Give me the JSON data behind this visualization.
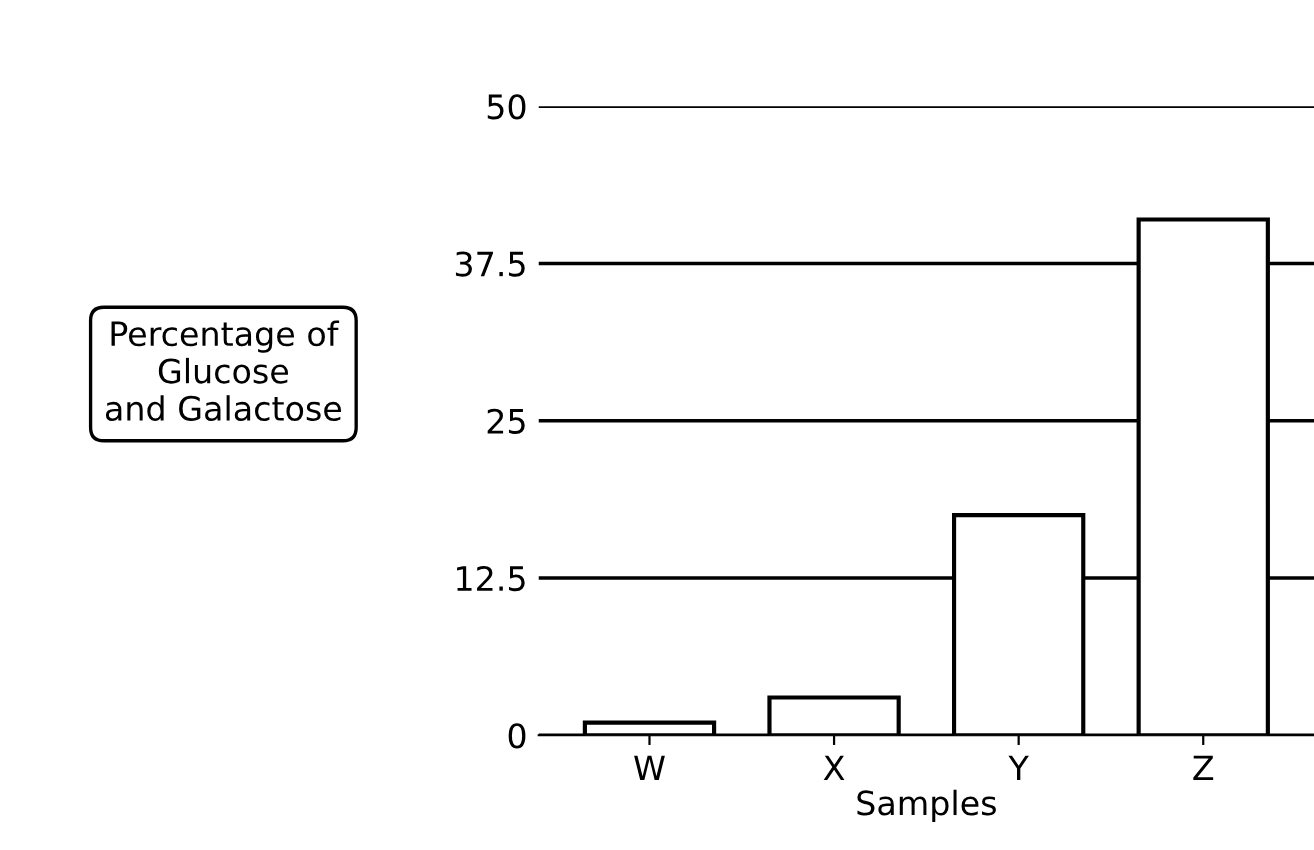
{
  "chart_data": {
    "type": "bar",
    "xlabel": "Samples",
    "ylabel": "Percentage of\nGlucose\nand Galactose",
    "categories": [
      "W",
      "X",
      "Y",
      "Z"
    ],
    "values": [
      1,
      3,
      17.5,
      41
    ],
    "color": "#ffffff",
    "ylim": [
      0,
      50
    ],
    "yticks": [
      0,
      12.5,
      25,
      37.5,
      50
    ],
    "grid": "y"
  }
}
